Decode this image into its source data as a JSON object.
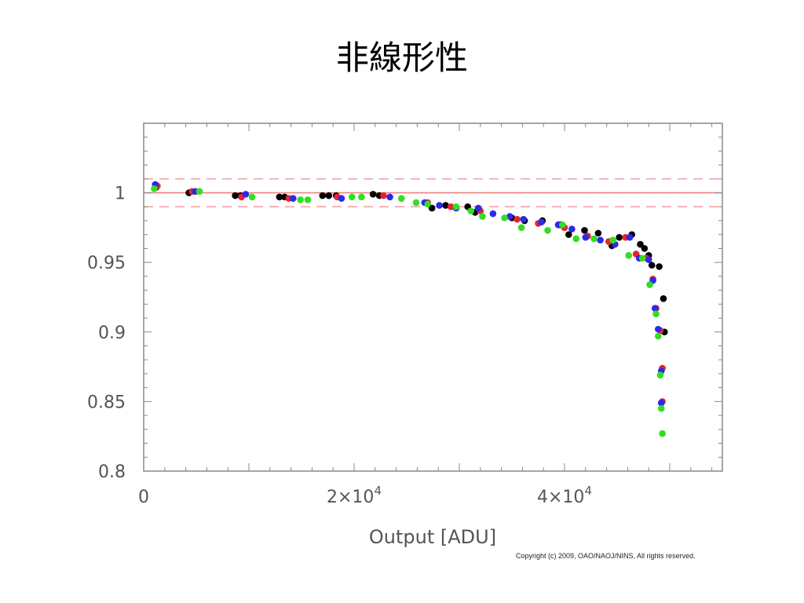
{
  "slide": {
    "title": "非線形性",
    "copyright": "Copyright (c) 2009, OAO/NAOJ/NINS, All rights reserved."
  },
  "chart_data": {
    "type": "scatter",
    "title": "",
    "xlabel": "Output [ADU]",
    "ylabel": "",
    "xlim": [
      0,
      55000
    ],
    "ylim": [
      0.8,
      1.05
    ],
    "x_ticks": [
      {
        "value": 0,
        "base": "0",
        "exp": ""
      },
      {
        "value": 20000,
        "base": "2×10",
        "exp": "4"
      },
      {
        "value": 40000,
        "base": "4×10",
        "exp": "4"
      }
    ],
    "y_ticks": [
      {
        "value": 0.8,
        "label": "0.8"
      },
      {
        "value": 0.85,
        "label": "0.85"
      },
      {
        "value": 0.9,
        "label": "0.9"
      },
      {
        "value": 0.95,
        "label": "0.95"
      },
      {
        "value": 1.0,
        "label": "1"
      }
    ],
    "reference_lines": [
      {
        "y": 1.0,
        "style": "solid",
        "color": "#f08080"
      },
      {
        "y": 1.01,
        "style": "dashed",
        "color": "#f4a0a0"
      },
      {
        "y": 0.99,
        "style": "dashed",
        "color": "#f4a0a0"
      }
    ],
    "grid": false,
    "series": [
      {
        "color": "#000000",
        "points": [
          [
            1200,
            1.004
          ],
          [
            4300,
            1.0
          ],
          [
            8700,
            0.998
          ],
          [
            9200,
            0.998
          ],
          [
            12900,
            0.997
          ],
          [
            13400,
            0.997
          ],
          [
            17000,
            0.998
          ],
          [
            17600,
            0.998
          ],
          [
            18300,
            0.998
          ],
          [
            21800,
            0.999
          ],
          [
            22400,
            0.998
          ],
          [
            27400,
            0.989
          ],
          [
            28700,
            0.991
          ],
          [
            30800,
            0.99
          ],
          [
            31500,
            0.986
          ],
          [
            35000,
            0.982
          ],
          [
            36200,
            0.98
          ],
          [
            37900,
            0.98
          ],
          [
            39600,
            0.977
          ],
          [
            40400,
            0.97
          ],
          [
            41900,
            0.973
          ],
          [
            43200,
            0.971
          ],
          [
            44500,
            0.962
          ],
          [
            45200,
            0.968
          ],
          [
            46400,
            0.97
          ],
          [
            47200,
            0.963
          ],
          [
            47600,
            0.96
          ],
          [
            48000,
            0.955
          ],
          [
            48300,
            0.948
          ],
          [
            49000,
            0.947
          ],
          [
            49400,
            0.924
          ],
          [
            49500,
            0.9
          ]
        ]
      },
      {
        "color": "#e8232e",
        "points": [
          [
            1300,
            1.005
          ],
          [
            4600,
            1.001
          ],
          [
            9300,
            0.997
          ],
          [
            13800,
            0.996
          ],
          [
            18400,
            0.997
          ],
          [
            22800,
            0.998
          ],
          [
            27000,
            0.993
          ],
          [
            29200,
            0.99
          ],
          [
            32000,
            0.987
          ],
          [
            35500,
            0.981
          ],
          [
            37500,
            0.978
          ],
          [
            40000,
            0.975
          ],
          [
            42200,
            0.969
          ],
          [
            44200,
            0.965
          ],
          [
            45800,
            0.968
          ],
          [
            46800,
            0.956
          ],
          [
            47800,
            0.953
          ],
          [
            48400,
            0.938
          ],
          [
            48700,
            0.917
          ],
          [
            49100,
            0.901
          ],
          [
            49300,
            0.874
          ],
          [
            49300,
            0.85
          ]
        ]
      },
      {
        "color": "#2a2ae8",
        "points": [
          [
            1100,
            1.006
          ],
          [
            4900,
            1.001
          ],
          [
            9700,
            0.999
          ],
          [
            14200,
            0.996
          ],
          [
            18800,
            0.996
          ],
          [
            23400,
            0.997
          ],
          [
            26700,
            0.993
          ],
          [
            28100,
            0.991
          ],
          [
            29700,
            0.989
          ],
          [
            31800,
            0.989
          ],
          [
            33200,
            0.985
          ],
          [
            34800,
            0.983
          ],
          [
            36100,
            0.981
          ],
          [
            37800,
            0.979
          ],
          [
            39400,
            0.977
          ],
          [
            40700,
            0.974
          ],
          [
            42000,
            0.968
          ],
          [
            43400,
            0.966
          ],
          [
            44800,
            0.963
          ],
          [
            46200,
            0.968
          ],
          [
            47100,
            0.953
          ],
          [
            48000,
            0.952
          ],
          [
            48400,
            0.937
          ],
          [
            48600,
            0.917
          ],
          [
            48900,
            0.902
          ],
          [
            49200,
            0.872
          ],
          [
            49200,
            0.849
          ]
        ]
      },
      {
        "color": "#33dd22",
        "points": [
          [
            1000,
            1.003
          ],
          [
            5300,
            1.001
          ],
          [
            10300,
            0.997
          ],
          [
            14900,
            0.995
          ],
          [
            15600,
            0.995
          ],
          [
            19800,
            0.997
          ],
          [
            20700,
            0.997
          ],
          [
            24500,
            0.996
          ],
          [
            25900,
            0.993
          ],
          [
            27000,
            0.992
          ],
          [
            29700,
            0.99
          ],
          [
            31100,
            0.987
          ],
          [
            32200,
            0.983
          ],
          [
            34300,
            0.982
          ],
          [
            35900,
            0.975
          ],
          [
            38400,
            0.973
          ],
          [
            39800,
            0.977
          ],
          [
            41100,
            0.967
          ],
          [
            42800,
            0.967
          ],
          [
            44600,
            0.966
          ],
          [
            46100,
            0.955
          ],
          [
            47400,
            0.953
          ],
          [
            48100,
            0.934
          ],
          [
            48700,
            0.913
          ],
          [
            48900,
            0.897
          ],
          [
            49100,
            0.869
          ],
          [
            49200,
            0.845
          ],
          [
            49300,
            0.827
          ]
        ]
      }
    ]
  }
}
